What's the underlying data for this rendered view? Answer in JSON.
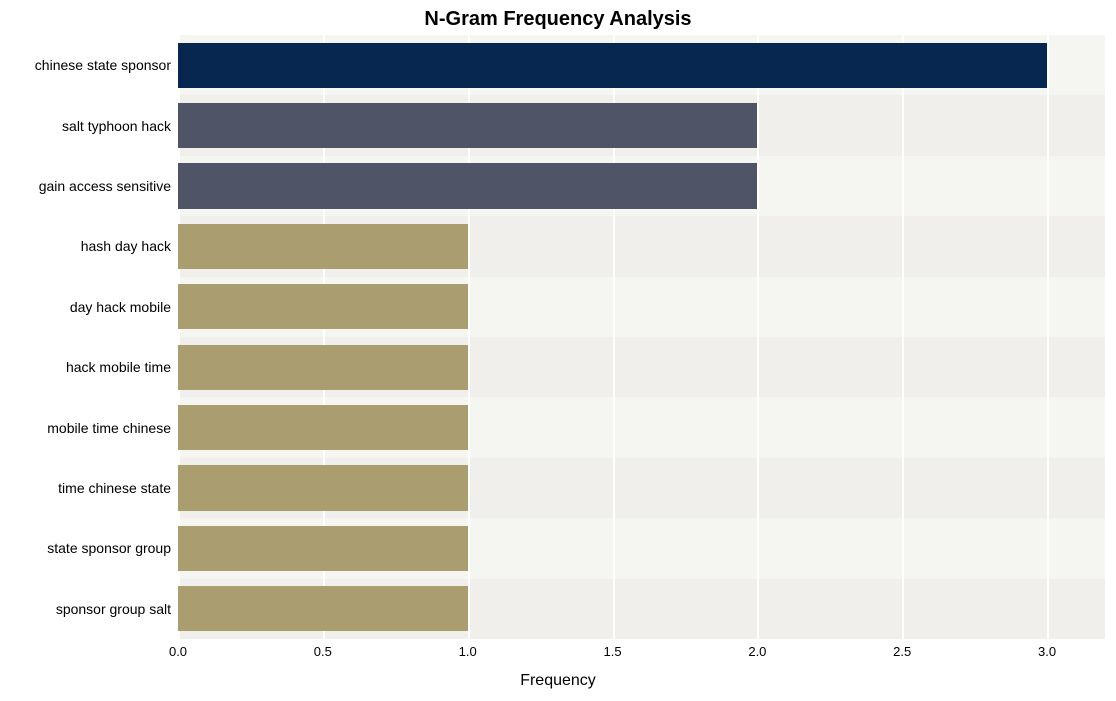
{
  "chart": {
    "type": "bar-horizontal",
    "title": "N-Gram Frequency Analysis",
    "title_fontsize": 20,
    "title_fontweight": "bold",
    "xlabel": "Frequency",
    "xlabel_fontsize": 16,
    "ylabel_fontsize": 14,
    "xtick_fontsize": 13,
    "plot_bg": "#f5f5f2",
    "page_bg": "#ffffff",
    "grid_color": "#ffffff",
    "alt_band_color": "#f0efeb",
    "xlim": [
      0.0,
      3.2
    ],
    "xticks": [
      0.0,
      0.5,
      1.0,
      1.5,
      2.0,
      2.5,
      3.0
    ],
    "bar_width": 0.75,
    "categories": [
      "chinese state sponsor",
      "salt typhoon hack",
      "gain access sensitive",
      "hash day hack",
      "day hack mobile",
      "hack mobile time",
      "mobile time chinese",
      "time chinese state",
      "state sponsor group",
      "sponsor group salt"
    ],
    "values": [
      3,
      2,
      2,
      1,
      1,
      1,
      1,
      1,
      1,
      1
    ],
    "bar_colors": [
      "#072751",
      "#4f5467",
      "#4f5467",
      "#aa9e70",
      "#aa9e70",
      "#aa9e70",
      "#aa9e70",
      "#aa9e70",
      "#aa9e70",
      "#aa9e70"
    ]
  }
}
